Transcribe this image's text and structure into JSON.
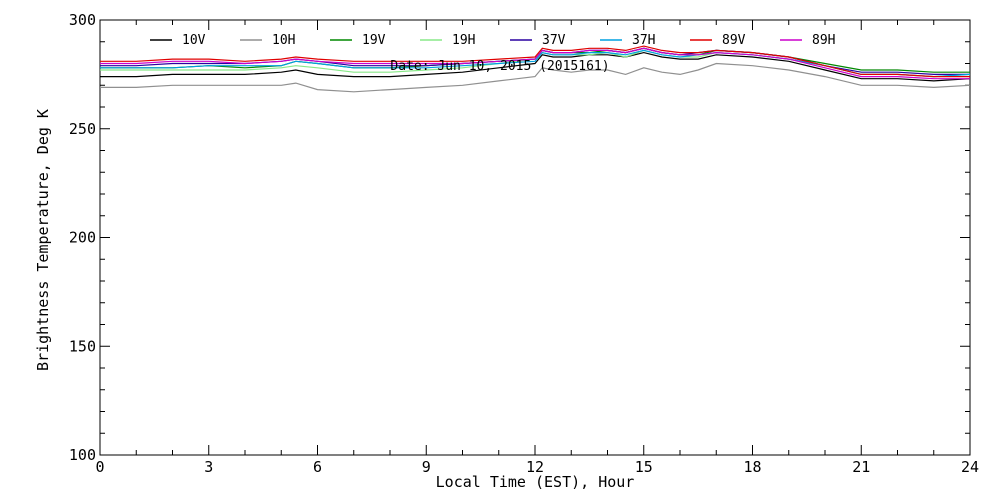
{
  "chart_data": {
    "type": "line",
    "title": "",
    "annotation": "Date: Jun 10, 2015 (2015161)",
    "xlabel": "Local Time (EST), Hour",
    "ylabel": "Brightness Temperature, Deg K",
    "xlim": [
      0,
      24
    ],
    "ylim": [
      100,
      300
    ],
    "x_ticks": [
      0,
      3,
      6,
      9,
      12,
      15,
      18,
      21,
      24
    ],
    "y_ticks": [
      100,
      150,
      200,
      250,
      300
    ],
    "grid": false,
    "legend_position": "top",
    "x": [
      0,
      1,
      2,
      3,
      4,
      5,
      5.4,
      6,
      7,
      8,
      9,
      10,
      11,
      12,
      12.2,
      12.5,
      13,
      13.5,
      14,
      14.5,
      15,
      15.5,
      16,
      16.5,
      17,
      18,
      19,
      20,
      21,
      22,
      23,
      24
    ],
    "series": [
      {
        "name": "10V",
        "color": "#000000",
        "values": [
          274,
          274,
          275,
          275,
          275,
          276,
          277,
          275,
          274,
          274,
          275,
          276,
          278,
          280,
          284,
          283,
          283,
          284,
          284,
          283,
          285,
          283,
          282,
          282,
          284,
          283,
          281,
          277,
          273,
          273,
          272,
          273
        ]
      },
      {
        "name": "10H",
        "color": "#909090",
        "values": [
          269,
          269,
          270,
          270,
          270,
          270,
          271,
          268,
          267,
          268,
          269,
          270,
          272,
          274,
          278,
          277,
          276,
          277,
          277,
          275,
          278,
          276,
          275,
          277,
          280,
          279,
          277,
          274,
          270,
          270,
          269,
          270
        ]
      },
      {
        "name": "19V",
        "color": "#008800",
        "values": [
          278,
          278,
          278,
          279,
          278,
          279,
          281,
          280,
          278,
          278,
          279,
          280,
          281,
          282,
          286,
          285,
          285,
          285,
          286,
          285,
          287,
          285,
          284,
          284,
          286,
          285,
          283,
          280,
          277,
          277,
          276,
          276
        ]
      },
      {
        "name": "19H",
        "color": "#88e888",
        "values": [
          277,
          277,
          277,
          277,
          277,
          278,
          279,
          278,
          276,
          276,
          277,
          278,
          280,
          282,
          285,
          284,
          284,
          284,
          285,
          283,
          286,
          284,
          283,
          283,
          285,
          284,
          282,
          279,
          275,
          275,
          274,
          275
        ]
      },
      {
        "name": "37V",
        "color": "#2a00a0",
        "values": [
          279,
          279,
          280,
          280,
          280,
          281,
          282,
          281,
          279,
          279,
          279,
          280,
          281,
          282,
          286,
          285,
          285,
          286,
          286,
          285,
          287,
          285,
          284,
          285,
          286,
          285,
          283,
          279,
          276,
          276,
          275,
          275
        ]
      },
      {
        "name": "37H",
        "color": "#00a0e0",
        "values": [
          278,
          278,
          278,
          279,
          279,
          279,
          281,
          280,
          278,
          278,
          278,
          279,
          280,
          281,
          285,
          284,
          284,
          285,
          285,
          284,
          286,
          284,
          283,
          284,
          285,
          284,
          282,
          279,
          275,
          275,
          274,
          275
        ]
      },
      {
        "name": "89V",
        "color": "#e00000",
        "values": [
          281,
          281,
          282,
          282,
          281,
          282,
          283,
          282,
          281,
          281,
          281,
          281,
          282,
          283,
          287,
          286,
          286,
          287,
          287,
          286,
          288,
          286,
          285,
          285,
          286,
          285,
          283,
          279,
          275,
          275,
          274,
          274
        ]
      },
      {
        "name": "89H",
        "color": "#cc00cc",
        "values": [
          280,
          280,
          281,
          281,
          280,
          281,
          282,
          281,
          280,
          280,
          280,
          280,
          281,
          282,
          286,
          285,
          285,
          286,
          286,
          285,
          287,
          285,
          284,
          284,
          285,
          284,
          282,
          278,
          274,
          274,
          273,
          273
        ]
      }
    ]
  }
}
